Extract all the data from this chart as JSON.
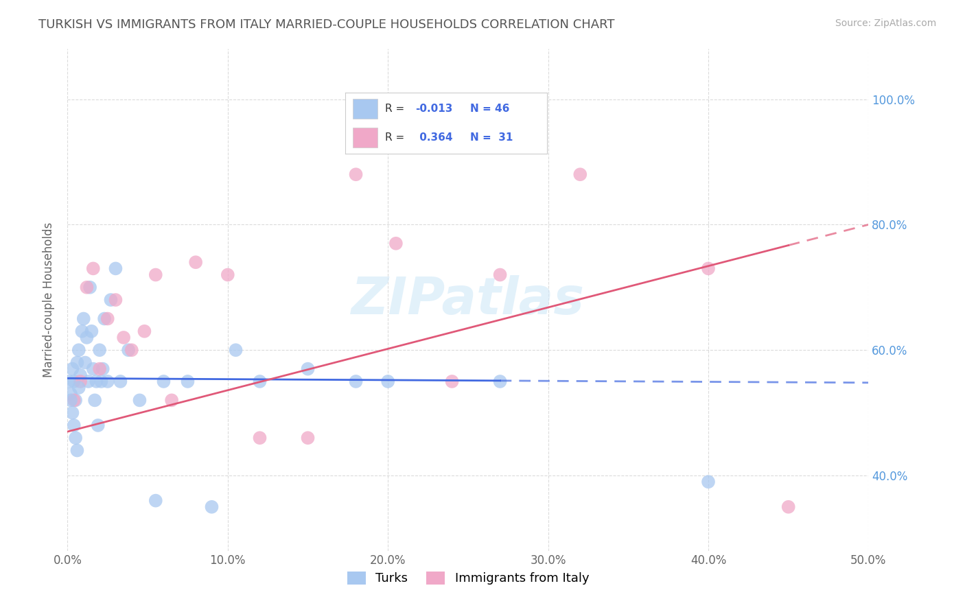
{
  "title": "TURKISH VS IMMIGRANTS FROM ITALY MARRIED-COUPLE HOUSEHOLDS CORRELATION CHART",
  "source": "Source: ZipAtlas.com",
  "ylabel": "Married-couple Households",
  "xmin": 0.0,
  "xmax": 50.0,
  "ymin": 28.0,
  "ymax": 108.0,
  "xticks": [
    0.0,
    10.0,
    20.0,
    30.0,
    40.0,
    50.0
  ],
  "yticks": [
    40.0,
    60.0,
    80.0,
    100.0
  ],
  "ytick_labels": [
    "40.0%",
    "60.0%",
    "80.0%",
    "100.0%"
  ],
  "xtick_labels": [
    "0.0%",
    "10.0%",
    "20.0%",
    "30.0%",
    "40.0%",
    "50.0%"
  ],
  "blue_R": -0.013,
  "blue_N": 46,
  "pink_R": 0.364,
  "pink_N": 31,
  "blue_color": "#a8c8f0",
  "pink_color": "#f0a8c8",
  "blue_line_color": "#4169e1",
  "pink_line_color": "#e05878",
  "blue_line_solid_end_x": 27.0,
  "pink_line_solid_end_x": 45.0,
  "blue_line_y_at_0": 55.5,
  "blue_line_y_at_50": 54.8,
  "pink_line_y_at_0": 47.0,
  "pink_line_y_at_50": 80.0,
  "watermark_text": "ZIPatlas",
  "legend_label_blue": "Turks",
  "legend_label_pink": "Immigrants from Italy",
  "blue_x": [
    0.2,
    0.3,
    0.4,
    0.5,
    0.6,
    0.7,
    0.8,
    0.9,
    1.0,
    1.1,
    1.2,
    1.3,
    1.4,
    1.5,
    1.6,
    1.7,
    1.8,
    1.9,
    2.0,
    2.1,
    2.2,
    2.3,
    2.5,
    2.7,
    3.0,
    3.3,
    3.8,
    4.5,
    5.5,
    6.0,
    7.5,
    9.0,
    10.5,
    12.0,
    15.0,
    18.0,
    20.0,
    27.0,
    40.0
  ],
  "blue_y": [
    53,
    57,
    55,
    52,
    58,
    60,
    56,
    63,
    65,
    58,
    62,
    55,
    70,
    63,
    57,
    52,
    55,
    48,
    60,
    55,
    57,
    65,
    55,
    68,
    73,
    55,
    60,
    52,
    36,
    55,
    55,
    35,
    60,
    55,
    57,
    55,
    55,
    55,
    39
  ],
  "blue_x2": [
    0.1,
    0.2,
    0.3,
    0.4,
    0.5,
    0.6,
    0.7
  ],
  "blue_y2": [
    55,
    52,
    50,
    48,
    46,
    44,
    54
  ],
  "pink_x": [
    0.4,
    0.8,
    1.2,
    1.6,
    2.0,
    2.5,
    3.0,
    3.5,
    4.0,
    4.8,
    5.5,
    6.5,
    8.0,
    10.0,
    12.0,
    15.0,
    18.0,
    20.5,
    24.0,
    27.0,
    32.0,
    40.0,
    45.0
  ],
  "pink_y": [
    52,
    55,
    70,
    73,
    57,
    65,
    68,
    62,
    60,
    63,
    72,
    52,
    74,
    72,
    46,
    46,
    88,
    77,
    55,
    72,
    88,
    73,
    35
  ]
}
